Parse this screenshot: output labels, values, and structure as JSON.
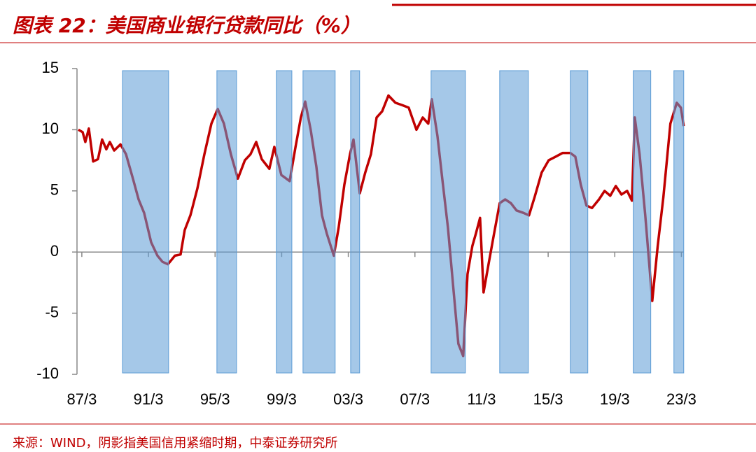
{
  "chart_data": {
    "type": "line",
    "title": "图表 22：美国商业银行贷款同比（%）",
    "source": "来源：WIND，阴影指美国信用紧缩时期，中泰证券研究所",
    "xlim": [
      1986.88,
      2023.32
    ],
    "ylim": [
      -10,
      15
    ],
    "yticks": [
      15,
      10,
      5,
      0,
      -5,
      -10
    ],
    "xticks": [
      {
        "value": 1987.17,
        "label": "87/3"
      },
      {
        "value": 1991.17,
        "label": "91/3"
      },
      {
        "value": 1995.17,
        "label": "95/3"
      },
      {
        "value": 1999.17,
        "label": "99/3"
      },
      {
        "value": 2003.17,
        "label": "03/3"
      },
      {
        "value": 2007.17,
        "label": "07/3"
      },
      {
        "value": 2011.17,
        "label": "11/3"
      },
      {
        "value": 2015.17,
        "label": "15/3"
      },
      {
        "value": 2019.17,
        "label": "19/3"
      },
      {
        "value": 2023.17,
        "label": "23/3"
      }
    ],
    "shaded_periods": [
      [
        1989.61,
        1992.38
      ],
      [
        1995.28,
        1996.46
      ],
      [
        1998.85,
        1999.78
      ],
      [
        2000.45,
        2002.38
      ],
      [
        2003.31,
        2003.85
      ],
      [
        2008.14,
        2010.2
      ],
      [
        2012.26,
        2013.98
      ],
      [
        2016.5,
        2017.55
      ],
      [
        2020.28,
        2021.33
      ],
      [
        2022.72,
        2023.31
      ]
    ],
    "shade_color": "#5b9bd5",
    "series": [
      {
        "name": "美国商业银行贷款同比",
        "color": "#c00000",
        "x": [
          1986.96,
          1987.22,
          1987.38,
          1987.59,
          1987.85,
          1988.14,
          1988.39,
          1988.64,
          1988.85,
          1989.11,
          1989.49,
          1989.82,
          1990.24,
          1990.58,
          1990.91,
          1991.33,
          1991.71,
          1992.01,
          1992.34,
          1992.76,
          1993.1,
          1993.35,
          1993.69,
          1994.11,
          1994.53,
          1994.95,
          1995.33,
          1995.7,
          1996.12,
          1996.54,
          1996.96,
          1997.3,
          1997.64,
          1997.97,
          1998.43,
          1998.73,
          1999.15,
          1999.65,
          1999.99,
          2000.32,
          2000.58,
          2000.91,
          2001.25,
          2001.59,
          2001.88,
          2002.3,
          2002.59,
          2002.93,
          2003.27,
          2003.48,
          2003.86,
          2004.19,
          2004.53,
          2004.87,
          2005.2,
          2005.58,
          2006.0,
          2006.42,
          2006.8,
          2007.26,
          2007.64,
          2007.97,
          2008.18,
          2008.52,
          2008.81,
          2009.15,
          2009.48,
          2009.78,
          2010.07,
          2010.33,
          2010.62,
          2010.83,
          2011.08,
          2011.29,
          2011.59,
          2011.92,
          2012.26,
          2012.59,
          2012.93,
          2013.27,
          2013.69,
          2014.02,
          2014.36,
          2014.78,
          2015.2,
          2015.62,
          2016.04,
          2016.5,
          2016.8,
          2017.13,
          2017.47,
          2017.8,
          2018.22,
          2018.56,
          2018.9,
          2019.23,
          2019.57,
          2019.91,
          2020.2,
          2020.37,
          2020.66,
          2021.0,
          2021.42,
          2021.75,
          2022.09,
          2022.51,
          2022.89,
          2023.14,
          2023.31
        ],
        "values": [
          10.0,
          9.8,
          9.0,
          10.1,
          7.4,
          7.6,
          9.2,
          8.4,
          9.0,
          8.3,
          8.8,
          8.0,
          6.0,
          4.3,
          3.2,
          0.8,
          -0.3,
          -0.8,
          -1.0,
          -0.3,
          -0.2,
          1.8,
          3.0,
          5.2,
          8.0,
          10.5,
          11.7,
          10.5,
          8.0,
          6.0,
          7.5,
          8.0,
          9.0,
          7.6,
          6.8,
          8.6,
          6.3,
          5.8,
          8.5,
          11.0,
          12.3,
          10.0,
          7.0,
          3.0,
          1.5,
          -0.3,
          2.0,
          5.5,
          8.0,
          9.2,
          4.8,
          6.5,
          8.0,
          11.0,
          11.5,
          12.8,
          12.2,
          12.0,
          11.8,
          10.0,
          11.0,
          10.5,
          12.5,
          9.5,
          6.0,
          2.0,
          -3.0,
          -7.5,
          -8.5,
          -1.8,
          0.5,
          1.5,
          2.8,
          -3.3,
          -1.0,
          1.5,
          4.0,
          4.3,
          4.0,
          3.4,
          3.2,
          3.0,
          4.5,
          6.5,
          7.5,
          7.8,
          8.1,
          8.1,
          7.8,
          5.5,
          3.8,
          3.6,
          4.3,
          5.0,
          4.6,
          5.4,
          4.7,
          5.0,
          4.2,
          11.0,
          8.0,
          3.0,
          -4.0,
          0.5,
          4.5,
          10.5,
          12.2,
          11.8,
          10.3
        ]
      }
    ]
  }
}
